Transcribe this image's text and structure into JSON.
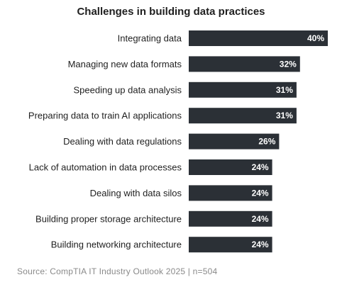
{
  "chart_data": {
    "type": "bar",
    "orientation": "horizontal",
    "title": "Challenges in building data practices",
    "categories": [
      "Integrating data",
      "Managing new data formats",
      "Speeding up data analysis",
      "Preparing data to train AI applications",
      "Dealing with data regulations",
      "Lack of automation in data processes",
      "Dealing with data silos",
      "Building proper storage architecture",
      "Building networking architecture"
    ],
    "values": [
      40,
      32,
      31,
      31,
      26,
      24,
      24,
      24,
      24
    ],
    "value_labels": [
      "40%",
      "32%",
      "31%",
      "31%",
      "26%",
      "24%",
      "24%",
      "24%",
      "24%"
    ],
    "xlim": [
      0,
      40
    ],
    "grid": false,
    "legend": "none",
    "colors": {
      "bar": "#2b3036",
      "bar_label": "#ffffff",
      "category_label": "#1f1f1f"
    }
  },
  "source": "Source: CompTIA IT Industry Outlook 2025 | n=504"
}
